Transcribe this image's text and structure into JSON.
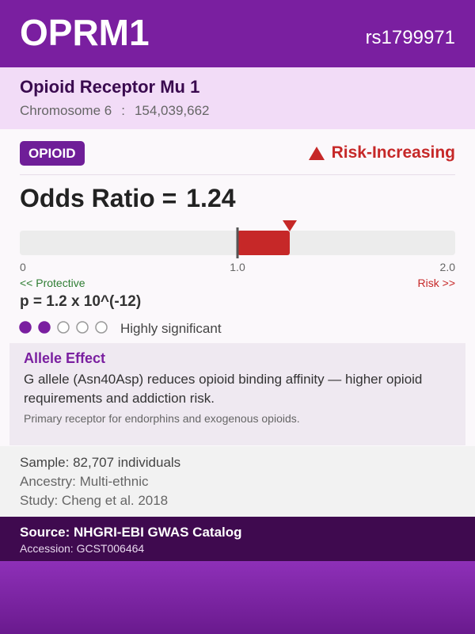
{
  "header": {
    "gene": "OPRM1",
    "rsid": "rs1799971"
  },
  "subheader": {
    "name": "Opioid Receptor Mu 1",
    "chromosome": "Chromosome 6",
    "separator": ":",
    "position": "154,039,662"
  },
  "badge": "OPIOID",
  "effect": "Risk-Increasing",
  "odds_ratio": {
    "prefix": "Odds Ratio =",
    "value": 1.24
  },
  "scale": {
    "lim": [
      0,
      2
    ],
    "ticks": [
      0,
      {
        "value": 1,
        "label": "1.0"
      },
      {
        "value": 2,
        "label": "2.0"
      }
    ],
    "left_label": "<< Protective",
    "right_label": "Risk >>"
  },
  "p_value": "p = 1.2 x 10^(-12)",
  "significance": {
    "filled": 2,
    "total": 5,
    "label": "Highly significant"
  },
  "allele_effect": {
    "title": "Allele Effect",
    "text": "G allele (Asn40Asp) reduces opioid binding affinity — higher opioid requirements and addiction risk.",
    "note": "Primary receptor for endorphins and exogenous opioids."
  },
  "study": {
    "sample": "Sample: 82,707 individuals",
    "ancestry": "Ancestry: Multi-ethnic",
    "reference": "Study: Cheng et al. 2018"
  },
  "footer": {
    "source": "Source: NHGRI-EBI GWAS Catalog",
    "accession": "Accession: GCST006464"
  }
}
